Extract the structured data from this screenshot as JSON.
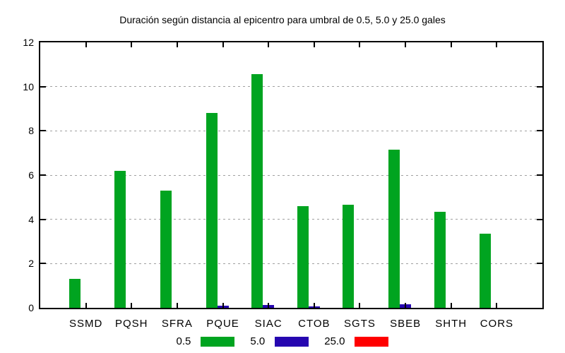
{
  "title": "Duración según distancia al epicentro para umbral de 0.5, 5.0 y 25.0 gales",
  "chart_data": {
    "type": "bar",
    "title": "Duración según distancia al epicentro para umbral de 0.5, 5.0 y 25.0 gales",
    "categories": [
      "SSMD",
      "PQSH",
      "SFRA",
      "PQUE",
      "SIAC",
      "CTOB",
      "SGTS",
      "SBEB",
      "SHTH",
      "CORS"
    ],
    "series": [
      {
        "name": "0.5",
        "color": "#00a420",
        "values": [
          1.3,
          6.2,
          5.3,
          8.8,
          10.55,
          4.6,
          4.65,
          7.15,
          4.35,
          3.35
        ]
      },
      {
        "name": "5.0",
        "color": "#2606b0",
        "values": [
          0,
          0,
          0,
          0.1,
          0.13,
          0.06,
          0,
          0.15,
          0,
          0
        ]
      },
      {
        "name": "25.0",
        "color": "#ff0000",
        "values": [
          0,
          0,
          0,
          0,
          0,
          0,
          0,
          0,
          0,
          0
        ]
      }
    ],
    "xlabel": "",
    "ylabel": "",
    "ylim": [
      0,
      12
    ],
    "yticks": [
      0,
      2,
      4,
      6,
      8,
      10,
      12
    ],
    "grid": "horizontal dotted gray at 2,4,6,8,10",
    "legend_position": "bottom-center",
    "bar_style": "grouped, 3 bars per category",
    "axis_color": "#000000",
    "grid_color": "#a0a0a0",
    "background": "#ffffff"
  },
  "legend": {
    "items": [
      {
        "label": "0.5",
        "color": "#00a420"
      },
      {
        "label": "5.0",
        "color": "#2606b0"
      },
      {
        "label": "25.0",
        "color": "#ff0000"
      }
    ]
  }
}
